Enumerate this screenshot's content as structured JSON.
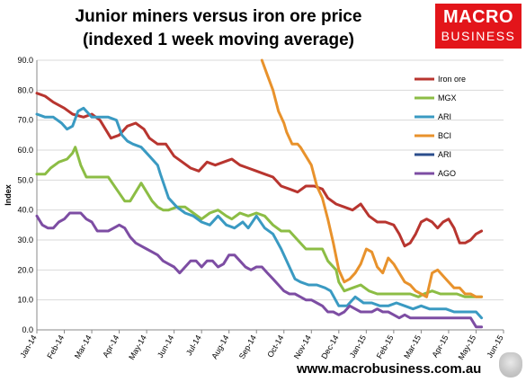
{
  "title": {
    "line1": "Junior miners versus iron ore price",
    "line2": "(indexed 1 week moving average)"
  },
  "logo": {
    "line1": "MACRO",
    "line2": "BUSINESS"
  },
  "website": "www.macrobusiness.com.au",
  "chart_data": {
    "type": "line",
    "ylabel": "Index",
    "ylim": [
      0,
      90
    ],
    "yticks": [
      "0.0",
      "10.0",
      "20.0",
      "30.0",
      "40.0",
      "50.0",
      "60.0",
      "70.0",
      "80.0",
      "90.0"
    ],
    "xlim": [
      0,
      17
    ],
    "categories": [
      "Jan-14",
      "Feb-14",
      "Mar-14",
      "Apr-14",
      "May-14",
      "Jun-14",
      "Jul-14",
      "Aug-14",
      "Sep-14",
      "Oct-14",
      "Nov-14",
      "Dec-14",
      "Jan-15",
      "Feb-15",
      "Mar-15",
      "Apr-15",
      "May-15",
      "Jun-15"
    ],
    "grid": true,
    "legend_position": "right",
    "series": [
      {
        "name": "Iron ore",
        "color": "#b8352f",
        "points": [
          [
            0,
            79
          ],
          [
            0.3,
            78
          ],
          [
            0.6,
            76
          ],
          [
            1.0,
            74
          ],
          [
            1.3,
            72
          ],
          [
            1.7,
            71
          ],
          [
            2.0,
            72
          ],
          [
            2.3,
            70
          ],
          [
            2.5,
            67
          ],
          [
            2.7,
            64
          ],
          [
            3.0,
            65
          ],
          [
            3.3,
            68
          ],
          [
            3.6,
            69
          ],
          [
            3.9,
            67
          ],
          [
            4.1,
            64
          ],
          [
            4.4,
            62
          ],
          [
            4.7,
            62
          ],
          [
            5.0,
            58
          ],
          [
            5.3,
            56
          ],
          [
            5.6,
            54
          ],
          [
            5.9,
            53
          ],
          [
            6.2,
            56
          ],
          [
            6.5,
            55
          ],
          [
            6.8,
            56
          ],
          [
            7.1,
            57
          ],
          [
            7.4,
            55
          ],
          [
            7.7,
            54
          ],
          [
            8.0,
            53
          ],
          [
            8.3,
            52
          ],
          [
            8.6,
            51
          ],
          [
            8.9,
            48
          ],
          [
            9.2,
            47
          ],
          [
            9.5,
            46
          ],
          [
            9.8,
            48
          ],
          [
            10.1,
            48
          ],
          [
            10.4,
            47
          ],
          [
            10.6,
            44
          ],
          [
            10.9,
            42
          ],
          [
            11.2,
            41
          ],
          [
            11.5,
            40
          ],
          [
            11.8,
            42
          ],
          [
            12.1,
            38
          ],
          [
            12.4,
            36
          ],
          [
            12.7,
            36
          ],
          [
            13.0,
            35
          ],
          [
            13.2,
            32
          ],
          [
            13.4,
            28
          ],
          [
            13.6,
            29
          ],
          [
            13.8,
            32
          ],
          [
            14.0,
            36
          ],
          [
            14.2,
            37
          ],
          [
            14.4,
            36
          ],
          [
            14.6,
            34
          ],
          [
            14.8,
            36
          ],
          [
            15.0,
            37
          ],
          [
            15.2,
            34
          ],
          [
            15.4,
            29
          ],
          [
            15.6,
            29
          ],
          [
            15.8,
            30
          ],
          [
            16.0,
            32
          ],
          [
            16.2,
            33
          ]
        ]
      },
      {
        "name": "MGX",
        "color": "#8cbd45",
        "points": [
          [
            0,
            52
          ],
          [
            0.3,
            52
          ],
          [
            0.5,
            54
          ],
          [
            0.8,
            56
          ],
          [
            1.1,
            57
          ],
          [
            1.3,
            59
          ],
          [
            1.4,
            61
          ],
          [
            1.6,
            55
          ],
          [
            1.8,
            51
          ],
          [
            2.0,
            51
          ],
          [
            2.3,
            51
          ],
          [
            2.6,
            51
          ],
          [
            2.9,
            47
          ],
          [
            3.2,
            43
          ],
          [
            3.4,
            43
          ],
          [
            3.6,
            46
          ],
          [
            3.8,
            49
          ],
          [
            4.0,
            46
          ],
          [
            4.2,
            43
          ],
          [
            4.4,
            41
          ],
          [
            4.6,
            40
          ],
          [
            4.8,
            40
          ],
          [
            5.1,
            41
          ],
          [
            5.4,
            41
          ],
          [
            5.7,
            39
          ],
          [
            6.0,
            37
          ],
          [
            6.3,
            39
          ],
          [
            6.6,
            40
          ],
          [
            6.9,
            38
          ],
          [
            7.1,
            37
          ],
          [
            7.4,
            39
          ],
          [
            7.7,
            38
          ],
          [
            8.0,
            39
          ],
          [
            8.3,
            38
          ],
          [
            8.6,
            35
          ],
          [
            8.9,
            33
          ],
          [
            9.2,
            33
          ],
          [
            9.5,
            30
          ],
          [
            9.8,
            27
          ],
          [
            10.1,
            27
          ],
          [
            10.4,
            27
          ],
          [
            10.6,
            23
          ],
          [
            10.9,
            20
          ],
          [
            11.0,
            16
          ],
          [
            11.2,
            13
          ],
          [
            11.5,
            14
          ],
          [
            11.8,
            15
          ],
          [
            12.1,
            13
          ],
          [
            12.4,
            12
          ],
          [
            12.7,
            12
          ],
          [
            13.0,
            12
          ],
          [
            13.3,
            12
          ],
          [
            13.6,
            12
          ],
          [
            13.9,
            11
          ],
          [
            14.1,
            12
          ],
          [
            14.4,
            13
          ],
          [
            14.7,
            12
          ],
          [
            15.0,
            12
          ],
          [
            15.3,
            12
          ],
          [
            15.6,
            11
          ],
          [
            15.9,
            11
          ],
          [
            16.2,
            11
          ]
        ]
      },
      {
        "name": "ARI",
        "color": "#3a9ac2",
        "points": [
          [
            0,
            72
          ],
          [
            0.3,
            71
          ],
          [
            0.6,
            71
          ],
          [
            0.9,
            69
          ],
          [
            1.1,
            67
          ],
          [
            1.3,
            68
          ],
          [
            1.5,
            73
          ],
          [
            1.7,
            74
          ],
          [
            2.0,
            71
          ],
          [
            2.3,
            71
          ],
          [
            2.6,
            71
          ],
          [
            2.9,
            70
          ],
          [
            3.1,
            65
          ],
          [
            3.3,
            63
          ],
          [
            3.5,
            62
          ],
          [
            3.8,
            61
          ],
          [
            4.1,
            58
          ],
          [
            4.4,
            55
          ],
          [
            4.5,
            52
          ],
          [
            4.8,
            44
          ],
          [
            5.1,
            41
          ],
          [
            5.4,
            39
          ],
          [
            5.7,
            38
          ],
          [
            6.0,
            36
          ],
          [
            6.3,
            35
          ],
          [
            6.6,
            38
          ],
          [
            6.9,
            35
          ],
          [
            7.2,
            34
          ],
          [
            7.5,
            36
          ],
          [
            7.7,
            34
          ],
          [
            8.0,
            38
          ],
          [
            8.3,
            34
          ],
          [
            8.6,
            32
          ],
          [
            8.9,
            27
          ],
          [
            9.1,
            23
          ],
          [
            9.4,
            17
          ],
          [
            9.6,
            16
          ],
          [
            9.9,
            15
          ],
          [
            10.2,
            15
          ],
          [
            10.5,
            14
          ],
          [
            10.7,
            13
          ],
          [
            11.0,
            8
          ],
          [
            11.3,
            8
          ],
          [
            11.6,
            11
          ],
          [
            11.9,
            9
          ],
          [
            12.2,
            9
          ],
          [
            12.5,
            8
          ],
          [
            12.8,
            8
          ],
          [
            13.1,
            9
          ],
          [
            13.4,
            8
          ],
          [
            13.7,
            7
          ],
          [
            14.0,
            8
          ],
          [
            14.3,
            7
          ],
          [
            14.6,
            7
          ],
          [
            14.9,
            7
          ],
          [
            15.2,
            6
          ],
          [
            15.5,
            6
          ],
          [
            15.8,
            6
          ],
          [
            16.0,
            6
          ],
          [
            16.2,
            4
          ]
        ]
      },
      {
        "name": "BCI",
        "color": "#e8922c",
        "points": [
          [
            8.2,
            90
          ],
          [
            8.4,
            85
          ],
          [
            8.6,
            80
          ],
          [
            8.8,
            73
          ],
          [
            9.0,
            69
          ],
          [
            9.1,
            66
          ],
          [
            9.3,
            62
          ],
          [
            9.5,
            62
          ],
          [
            9.6,
            61
          ],
          [
            9.8,
            58
          ],
          [
            10.0,
            55
          ],
          [
            10.2,
            48
          ],
          [
            10.4,
            44
          ],
          [
            10.6,
            37
          ],
          [
            10.8,
            29
          ],
          [
            11.0,
            20
          ],
          [
            11.2,
            16
          ],
          [
            11.4,
            17
          ],
          [
            11.6,
            19
          ],
          [
            11.8,
            22
          ],
          [
            12.0,
            27
          ],
          [
            12.2,
            26
          ],
          [
            12.4,
            21
          ],
          [
            12.6,
            19
          ],
          [
            12.8,
            24
          ],
          [
            13.0,
            22
          ],
          [
            13.2,
            19
          ],
          [
            13.4,
            16
          ],
          [
            13.6,
            15
          ],
          [
            13.8,
            13
          ],
          [
            14.0,
            12
          ],
          [
            14.2,
            11
          ],
          [
            14.4,
            19
          ],
          [
            14.6,
            20
          ],
          [
            14.8,
            18
          ],
          [
            15.0,
            16
          ],
          [
            15.2,
            14
          ],
          [
            15.4,
            14
          ],
          [
            15.6,
            12
          ],
          [
            15.8,
            12
          ],
          [
            16.0,
            11
          ],
          [
            16.2,
            11
          ]
        ]
      },
      {
        "name": "ARI",
        "color": "#2b4e8c",
        "points": []
      },
      {
        "name": "AGO",
        "color": "#7d4da3",
        "points": [
          [
            0,
            38
          ],
          [
            0.2,
            35
          ],
          [
            0.4,
            34
          ],
          [
            0.6,
            34
          ],
          [
            0.8,
            36
          ],
          [
            1.0,
            37
          ],
          [
            1.2,
            39
          ],
          [
            1.4,
            39
          ],
          [
            1.6,
            39
          ],
          [
            1.8,
            37
          ],
          [
            2.0,
            36
          ],
          [
            2.2,
            33
          ],
          [
            2.4,
            33
          ],
          [
            2.6,
            33
          ],
          [
            2.8,
            34
          ],
          [
            3.0,
            35
          ],
          [
            3.2,
            34
          ],
          [
            3.4,
            31
          ],
          [
            3.6,
            29
          ],
          [
            3.8,
            28
          ],
          [
            4.0,
            27
          ],
          [
            4.2,
            26
          ],
          [
            4.4,
            25
          ],
          [
            4.6,
            23
          ],
          [
            4.8,
            22
          ],
          [
            5.0,
            21
          ],
          [
            5.2,
            19
          ],
          [
            5.4,
            21
          ],
          [
            5.6,
            23
          ],
          [
            5.8,
            23
          ],
          [
            6.0,
            21
          ],
          [
            6.2,
            23
          ],
          [
            6.4,
            23
          ],
          [
            6.6,
            21
          ],
          [
            6.8,
            22
          ],
          [
            7.0,
            25
          ],
          [
            7.2,
            25
          ],
          [
            7.4,
            23
          ],
          [
            7.6,
            21
          ],
          [
            7.8,
            20
          ],
          [
            8.0,
            21
          ],
          [
            8.2,
            21
          ],
          [
            8.4,
            19
          ],
          [
            8.6,
            17
          ],
          [
            8.8,
            15
          ],
          [
            9.0,
            13
          ],
          [
            9.2,
            12
          ],
          [
            9.4,
            12
          ],
          [
            9.6,
            11
          ],
          [
            9.8,
            10
          ],
          [
            10.0,
            10
          ],
          [
            10.2,
            9
          ],
          [
            10.4,
            8
          ],
          [
            10.6,
            6
          ],
          [
            10.8,
            6
          ],
          [
            11.0,
            5
          ],
          [
            11.2,
            6
          ],
          [
            11.4,
            8
          ],
          [
            11.6,
            7
          ],
          [
            11.8,
            6
          ],
          [
            12.0,
            6
          ],
          [
            12.2,
            6
          ],
          [
            12.4,
            7
          ],
          [
            12.6,
            6
          ],
          [
            12.8,
            6
          ],
          [
            13.0,
            5
          ],
          [
            13.2,
            4
          ],
          [
            13.4,
            5
          ],
          [
            13.6,
            4
          ],
          [
            13.8,
            4
          ],
          [
            14.0,
            4
          ],
          [
            14.2,
            4
          ],
          [
            14.4,
            4
          ],
          [
            14.6,
            4
          ],
          [
            14.8,
            4
          ],
          [
            15.0,
            4
          ],
          [
            15.2,
            4
          ],
          [
            15.4,
            4
          ],
          [
            15.6,
            4
          ],
          [
            15.8,
            4
          ],
          [
            16.0,
            1
          ],
          [
            16.2,
            1
          ]
        ]
      }
    ]
  }
}
